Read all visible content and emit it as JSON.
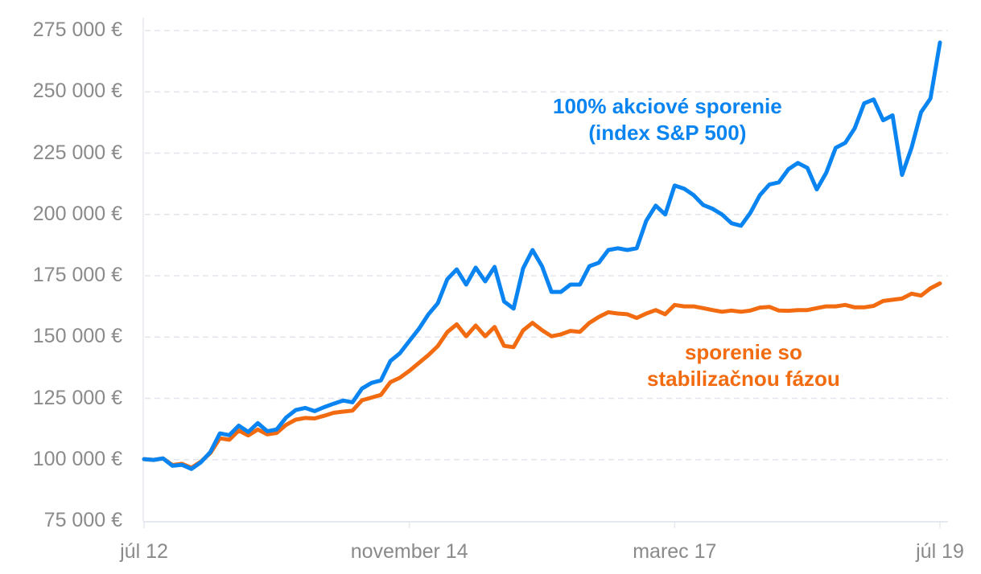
{
  "chart_data": {
    "type": "line",
    "title": "",
    "xlabel": "",
    "ylabel": "",
    "currency_suffix": " €",
    "ylim": [
      75000,
      275000
    ],
    "yticks": [
      75000,
      100000,
      125000,
      150000,
      175000,
      200000,
      225000,
      250000,
      275000
    ],
    "ytick_labels": [
      "75 000 €",
      "100 000 €",
      "125 000 €",
      "150 000 €",
      "175 000 €",
      "200 000 €",
      "225 000 €",
      "250 000 €",
      "275 000 €"
    ],
    "xtick_labels": [
      "júl 12",
      "november 14",
      "marec 17",
      "júl 19"
    ],
    "xtick_months": [
      0,
      28,
      56,
      84
    ],
    "grid": {
      "horizontal": true,
      "style": "dashed",
      "color": "#e3e5ee"
    },
    "legend_position": "inline annotations",
    "series": [
      {
        "name": "100% akciové sporenie (index S&P 500)",
        "color": "#0a84f0",
        "months": [
          0,
          1,
          2,
          3,
          4,
          5,
          6,
          7,
          8,
          9,
          10,
          11,
          12,
          13,
          14,
          15,
          16,
          17,
          18,
          19,
          20,
          21,
          22,
          23,
          24,
          25,
          26,
          27,
          28,
          29,
          30,
          31,
          32,
          33,
          34,
          35,
          36,
          37,
          38,
          39,
          40,
          41,
          42,
          43,
          44,
          45,
          46,
          47,
          48,
          49,
          50,
          51,
          52,
          53,
          54,
          55,
          56,
          57,
          58,
          59,
          60,
          61,
          62,
          63,
          64,
          65,
          66,
          67,
          68,
          69,
          70,
          71,
          72,
          73,
          74,
          75,
          76,
          77,
          78,
          79,
          80,
          81,
          82,
          83,
          84
        ],
        "values": [
          100200,
          99900,
          100500,
          97500,
          97900,
          96200,
          98900,
          103100,
          110700,
          110000,
          113900,
          111300,
          114900,
          111600,
          112300,
          117200,
          120200,
          121100,
          119800,
          121400,
          122800,
          124100,
          123400,
          129000,
          131300,
          132300,
          140200,
          143400,
          148400,
          153300,
          159200,
          163800,
          173600,
          177600,
          171400,
          178300,
          172700,
          178600,
          164500,
          161600,
          178000,
          185500,
          178900,
          168400,
          168400,
          171400,
          171400,
          178900,
          180300,
          185500,
          186200,
          185500,
          186200,
          197400,
          203600,
          200000,
          211800,
          210500,
          207900,
          203900,
          202300,
          200000,
          196400,
          195400,
          200700,
          207900,
          212200,
          213100,
          218400,
          221000,
          219000,
          210200,
          217000,
          227200,
          229200,
          235100,
          245300,
          246900,
          238400,
          240400,
          216100,
          227200,
          241700,
          247300,
          270100
        ]
      },
      {
        "name": "sporenie so stabilizačnou fázou",
        "color": "#f26b10",
        "months": [
          0,
          1,
          2,
          3,
          4,
          5,
          6,
          7,
          8,
          9,
          10,
          11,
          12,
          13,
          14,
          15,
          16,
          17,
          18,
          19,
          20,
          21,
          22,
          23,
          24,
          25,
          26,
          27,
          28,
          29,
          30,
          31,
          32,
          33,
          34,
          35,
          36,
          37,
          38,
          39,
          40,
          41,
          42,
          43,
          44,
          45,
          46,
          47,
          48,
          49,
          50,
          51,
          52,
          53,
          54,
          55,
          56,
          57,
          58,
          59,
          60,
          61,
          62,
          63,
          64,
          65,
          66,
          67,
          68,
          69,
          70,
          71,
          72,
          73,
          74,
          75,
          76,
          77,
          78,
          79,
          80,
          81,
          82,
          83,
          84
        ],
        "values": [
          100200,
          99900,
          100500,
          97800,
          98300,
          96700,
          99200,
          102700,
          108700,
          108100,
          111900,
          109900,
          112300,
          110300,
          110900,
          114200,
          116300,
          117000,
          116800,
          117900,
          119100,
          119600,
          120000,
          124200,
          125300,
          126400,
          131600,
          133400,
          136200,
          139400,
          142600,
          146300,
          152000,
          155200,
          150300,
          154700,
          150300,
          154100,
          146400,
          145900,
          152700,
          155800,
          152800,
          150300,
          151100,
          152500,
          152100,
          155800,
          158200,
          160100,
          159600,
          159300,
          157800,
          159600,
          161000,
          159300,
          163100,
          162500,
          162500,
          161800,
          161000,
          160300,
          160800,
          160300,
          160800,
          162000,
          162300,
          160800,
          160700,
          161000,
          161000,
          161800,
          162500,
          162500,
          163100,
          162100,
          162100,
          162700,
          164700,
          165200,
          165700,
          167700,
          166900,
          169900,
          171900
        ]
      }
    ],
    "annotations": [
      {
        "series": 0,
        "lines": [
          "100% akciové sporenie",
          "(index S&P 500)"
        ],
        "color": "#0a84f0"
      },
      {
        "series": 1,
        "lines": [
          "sporenie so",
          "stabilizačnou fázou"
        ],
        "color": "#f26b10"
      }
    ]
  }
}
